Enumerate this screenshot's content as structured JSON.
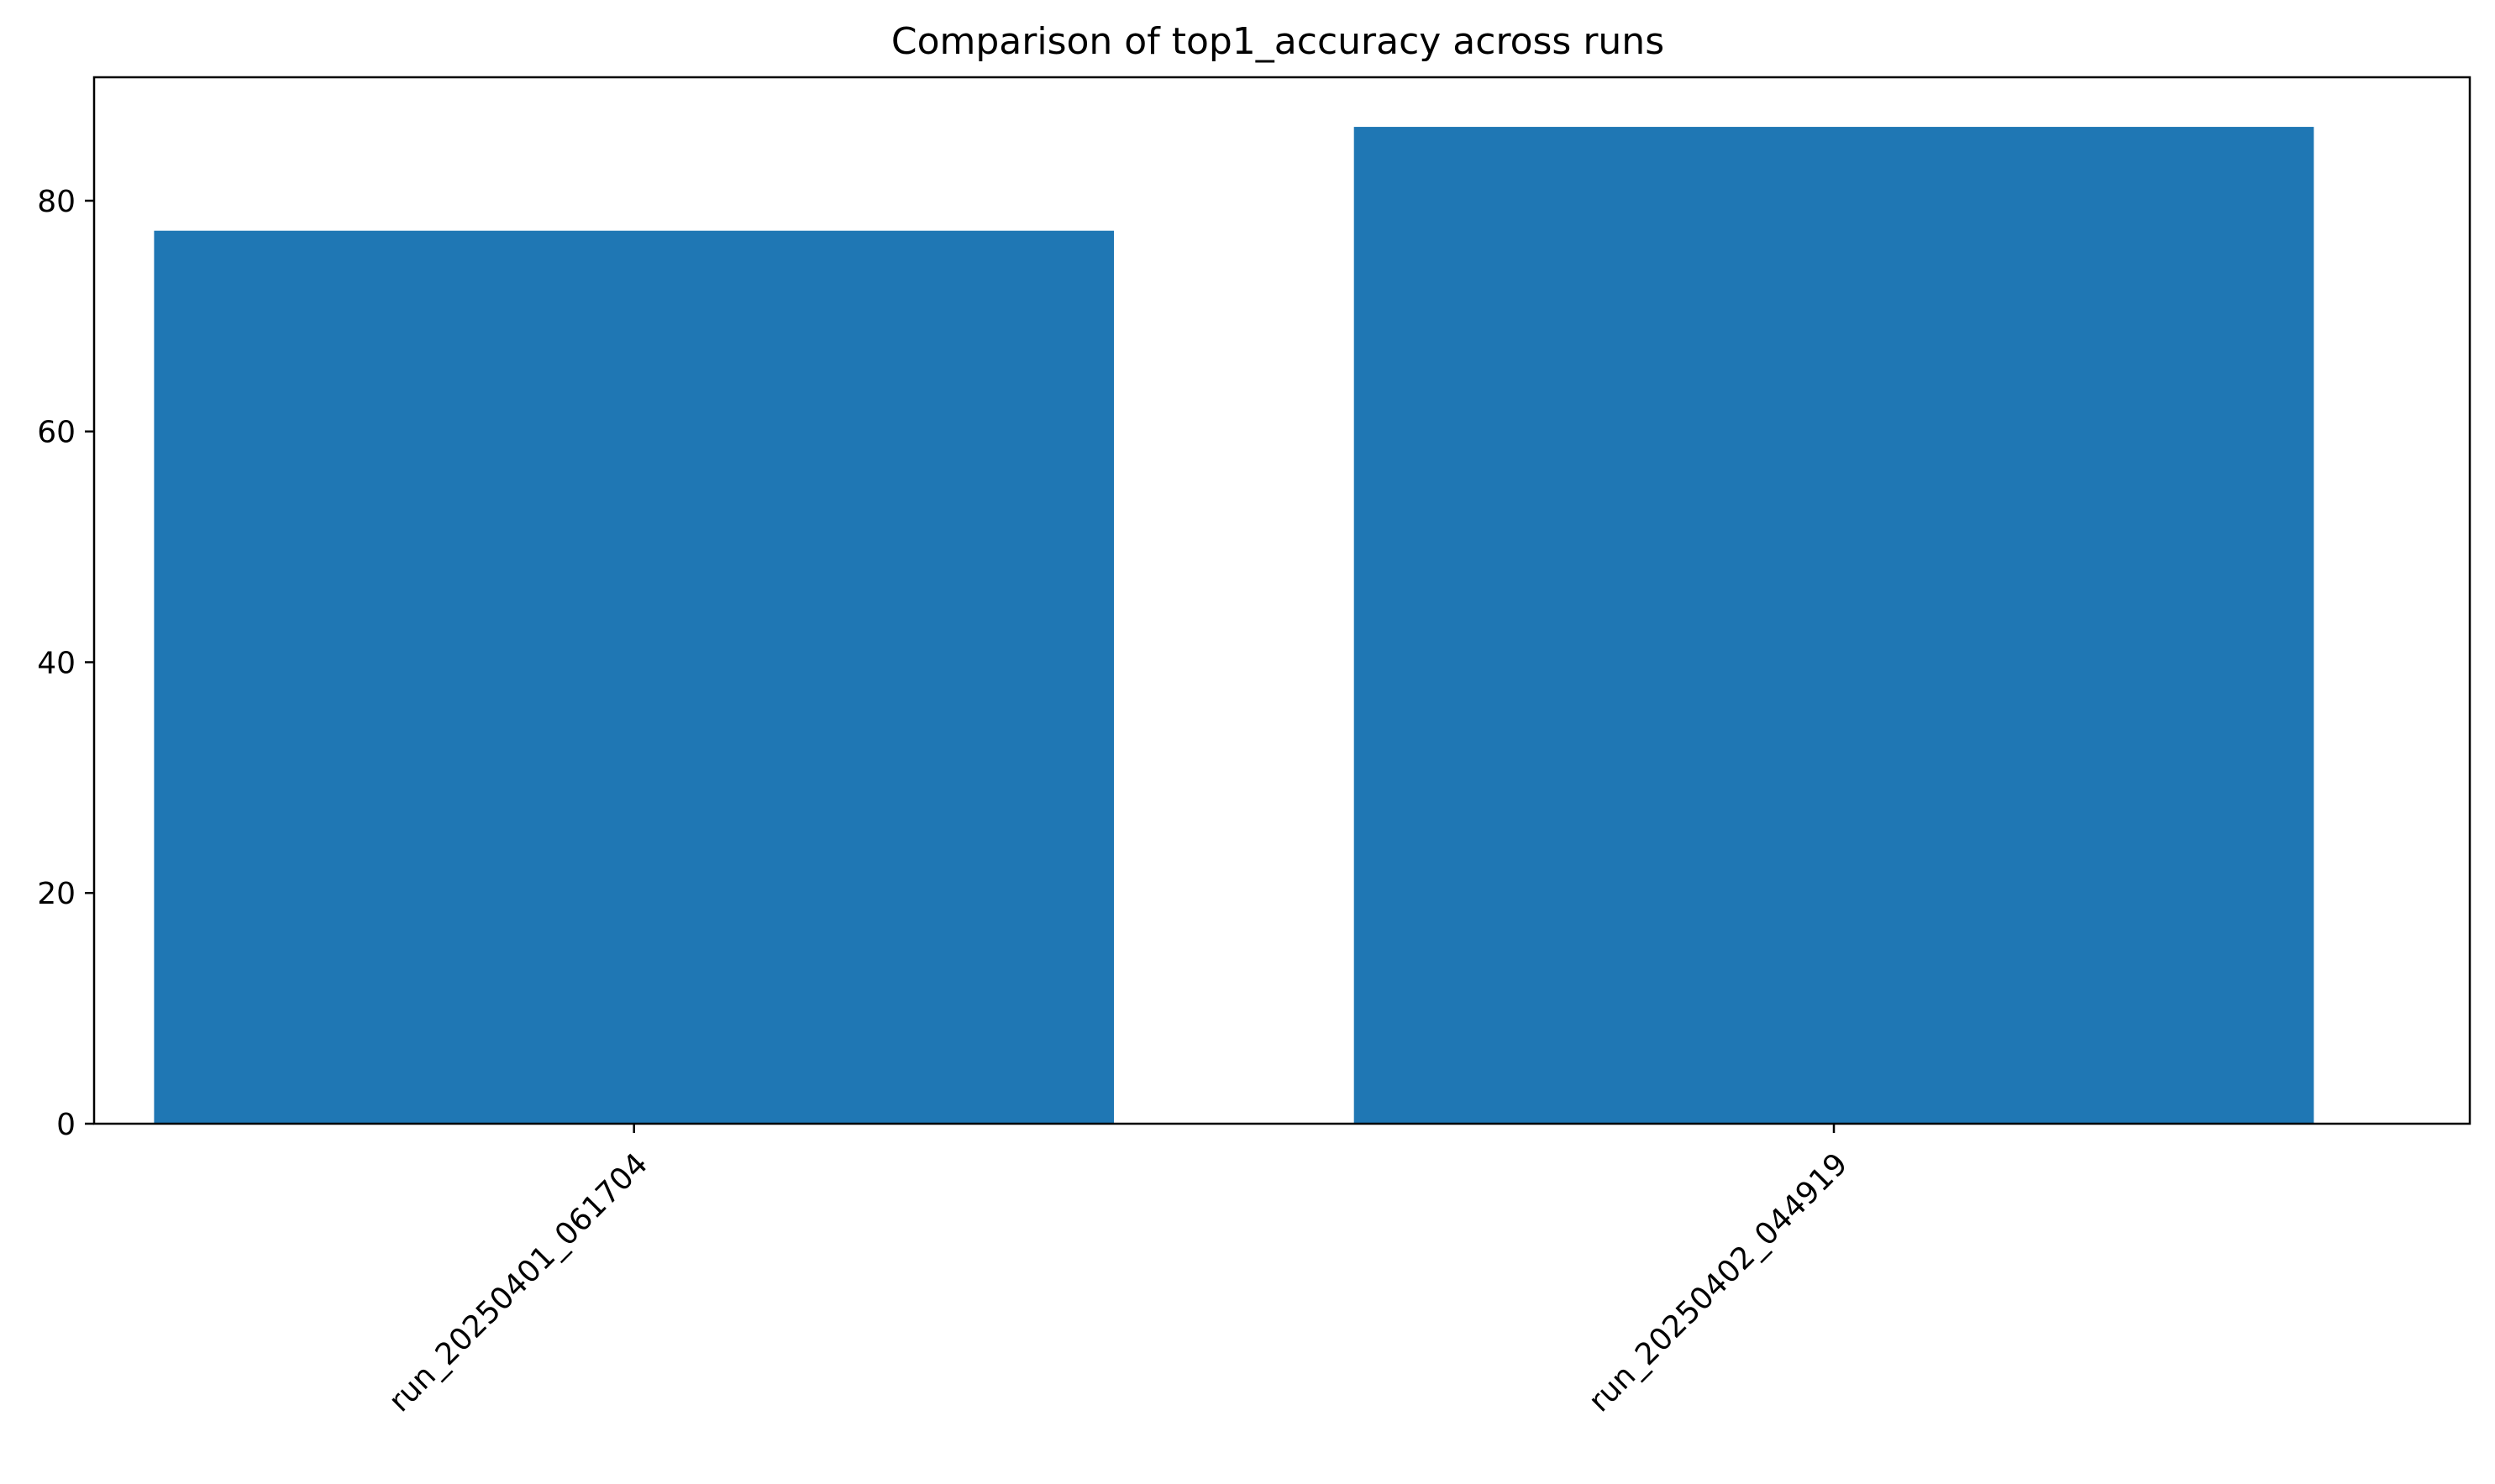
{
  "chart_data": {
    "type": "bar",
    "title": "Comparison of top1_accuracy across runs",
    "xlabel": "",
    "ylabel": "",
    "categories": [
      "run_20250401_061704",
      "run_20250402_044919"
    ],
    "values": [
      77.4,
      86.4
    ],
    "ylim": [
      0,
      90.7
    ],
    "yticks": [
      0,
      20,
      40,
      60,
      80
    ],
    "bar_color": "#1f77b4",
    "xtick_rotation_deg": 45,
    "grid": false,
    "legend": "none"
  }
}
